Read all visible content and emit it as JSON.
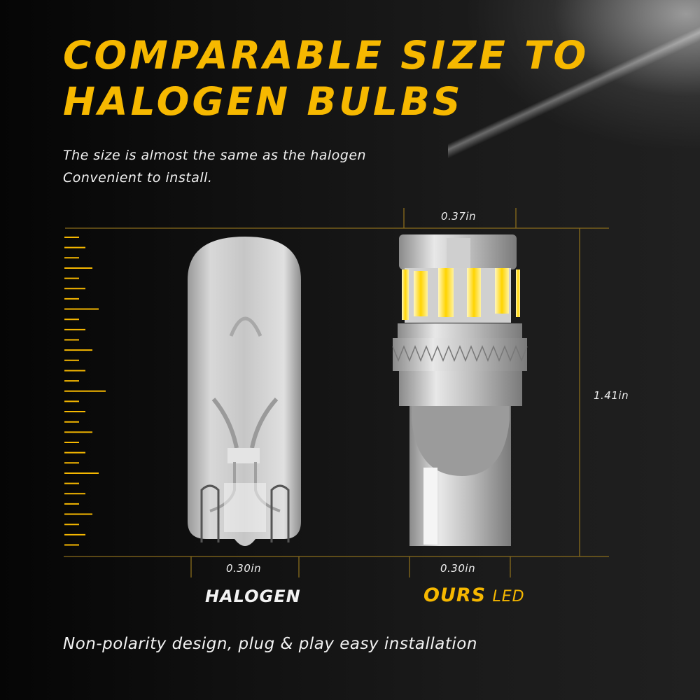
{
  "heading": {
    "line1": "COMPARABLE SIZE TO",
    "line2": "HALOGEN BULBS"
  },
  "subtitle": {
    "line1": "The size is almost the same as the halogen",
    "line2": "Convenient to install."
  },
  "dimensions": {
    "led_top_width": "0.37in",
    "height": "1.41in",
    "halogen_base_width": "0.30in",
    "led_base_width": "0.30in"
  },
  "labels": {
    "halogen": "HALOGEN",
    "ours": "OURS",
    "led": "LED"
  },
  "footer": "Non-polarity design, plug & play easy installation",
  "colors": {
    "accent": "#f6b800",
    "guide_line": "#8a6d1c",
    "text": "#f2f2f2"
  }
}
